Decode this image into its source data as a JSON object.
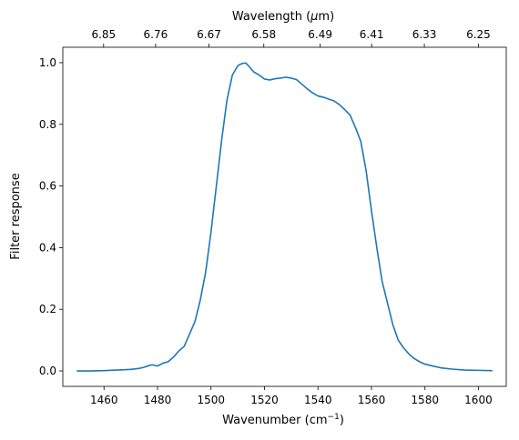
{
  "chart_data": {
    "type": "line",
    "title": "",
    "xlabel": "Wavenumber (cm",
    "xlabel_sup": "−1",
    "xlabel_close": ")",
    "ylabel": "Filter response",
    "top_axis_label_pre": "Wavelength (",
    "top_axis_label_mu": "μ",
    "top_axis_label_post": "m)",
    "xlim": [
      1444.6,
      1610.4
    ],
    "ylim": [
      -0.05,
      1.05
    ],
    "grid": false,
    "legend": "none",
    "line_color": "#1f77b4",
    "x_ticks": [
      1460,
      1480,
      1500,
      1520,
      1540,
      1560,
      1580,
      1600
    ],
    "x_tick_labels": [
      "1460",
      "1480",
      "1500",
      "1520",
      "1540",
      "1560",
      "1580",
      "1600"
    ],
    "y_ticks": [
      0.0,
      0.2,
      0.4,
      0.6,
      0.8,
      1.0
    ],
    "y_tick_labels": [
      "0.0",
      "0.2",
      "0.4",
      "0.6",
      "0.8",
      "1.0"
    ],
    "top_ticks_um": [
      6.85,
      6.76,
      6.67,
      6.58,
      6.49,
      6.41,
      6.33,
      6.25
    ],
    "top_tick_labels": [
      "6.85",
      "6.76",
      "6.67",
      "6.58",
      "6.49",
      "6.41",
      "6.33",
      "6.25"
    ],
    "series": [
      {
        "x": [
          1450,
          1455,
          1460,
          1465,
          1470,
          1473,
          1475,
          1477,
          1478,
          1480,
          1482,
          1484,
          1486,
          1488,
          1490,
          1492,
          1494,
          1496,
          1498,
          1500,
          1502,
          1504,
          1506,
          1508,
          1510,
          1511,
          1512,
          1513,
          1514,
          1515,
          1516,
          1518,
          1520,
          1522,
          1524,
          1526,
          1528,
          1530,
          1532,
          1534,
          1536,
          1538,
          1540,
          1542,
          1544,
          1546,
          1548,
          1550,
          1552,
          1554,
          1556,
          1558,
          1560,
          1562,
          1564,
          1566,
          1568,
          1570,
          1572,
          1574,
          1576,
          1578,
          1580,
          1582,
          1584,
          1586,
          1588,
          1590,
          1595,
          1600,
          1605
        ],
        "y": [
          0.0,
          0.0,
          0.001,
          0.003,
          0.005,
          0.008,
          0.012,
          0.018,
          0.02,
          0.016,
          0.025,
          0.03,
          0.045,
          0.065,
          0.08,
          0.12,
          0.16,
          0.23,
          0.32,
          0.45,
          0.6,
          0.75,
          0.88,
          0.96,
          0.99,
          0.995,
          0.998,
          0.999,
          0.99,
          0.98,
          0.97,
          0.96,
          0.947,
          0.944,
          0.948,
          0.95,
          0.953,
          0.95,
          0.945,
          0.93,
          0.915,
          0.902,
          0.892,
          0.888,
          0.882,
          0.876,
          0.864,
          0.848,
          0.83,
          0.79,
          0.745,
          0.65,
          0.52,
          0.4,
          0.29,
          0.22,
          0.15,
          0.1,
          0.075,
          0.055,
          0.04,
          0.03,
          0.022,
          0.018,
          0.014,
          0.01,
          0.008,
          0.006,
          0.003,
          0.002,
          0.001
        ]
      }
    ]
  }
}
